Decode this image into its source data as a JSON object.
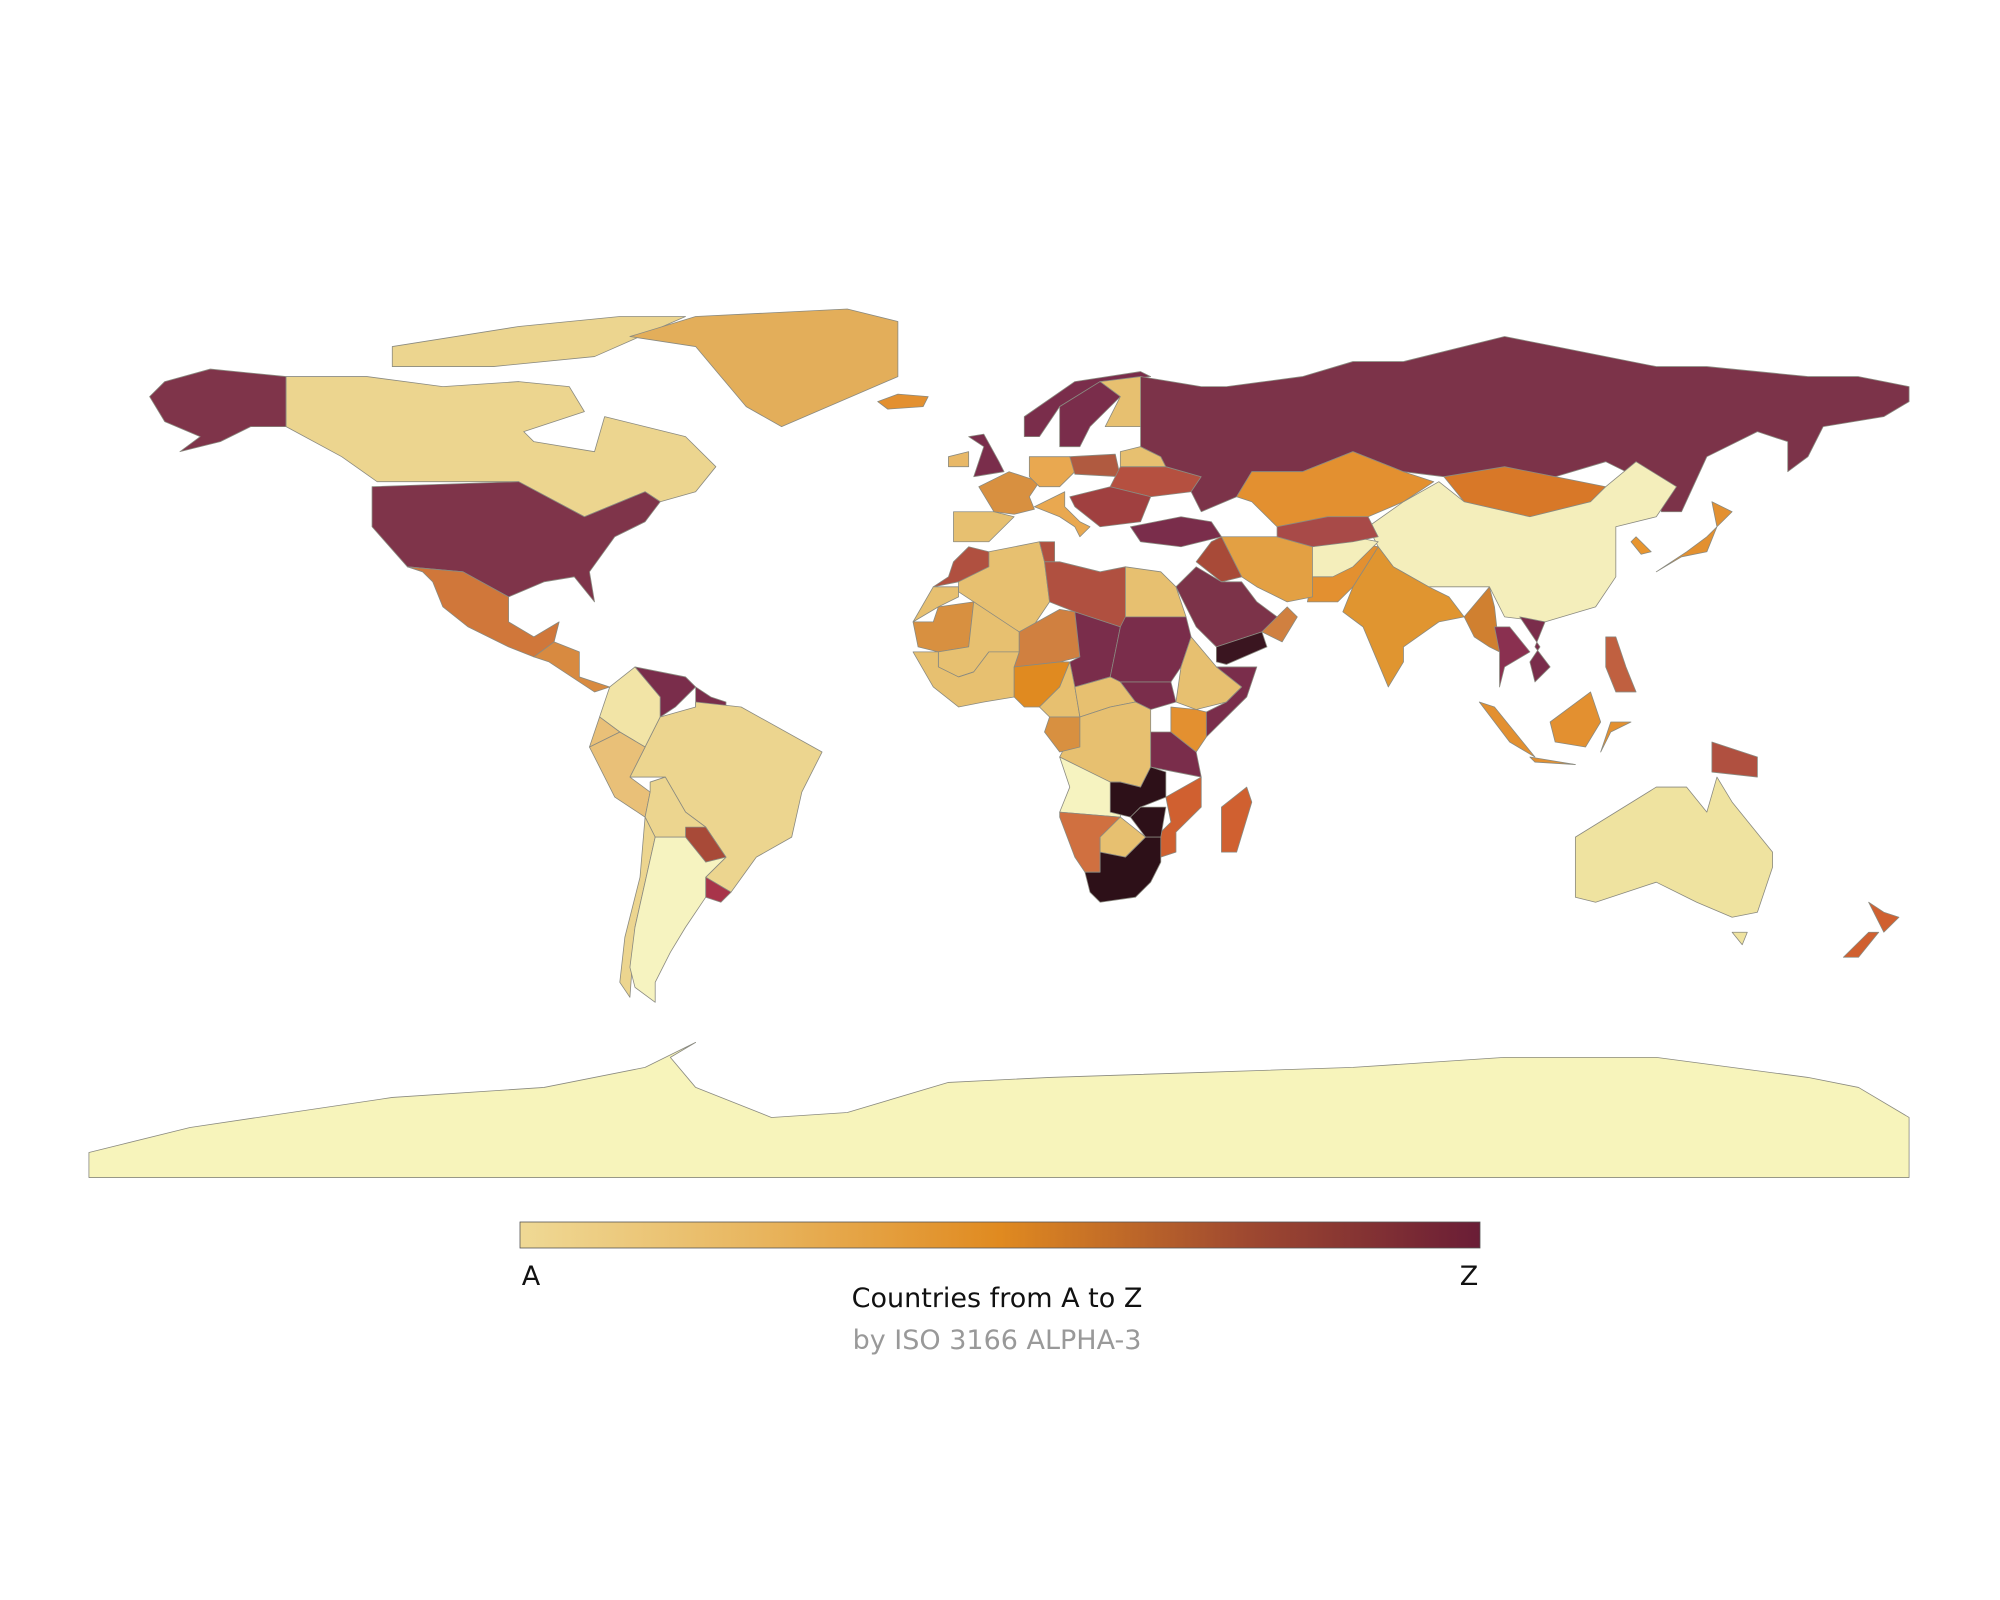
{
  "chart_data": {
    "type": "choropleth",
    "title": "Countries from A to Z",
    "subtitle": "by ISO 3166 ALPHA-3",
    "colorbar": {
      "min_label": "A",
      "max_label": "Z",
      "colors": [
        "#efd995",
        "#e8b55e",
        "#e08a20",
        "#a04a30",
        "#6a1d36"
      ]
    }
  }
}
